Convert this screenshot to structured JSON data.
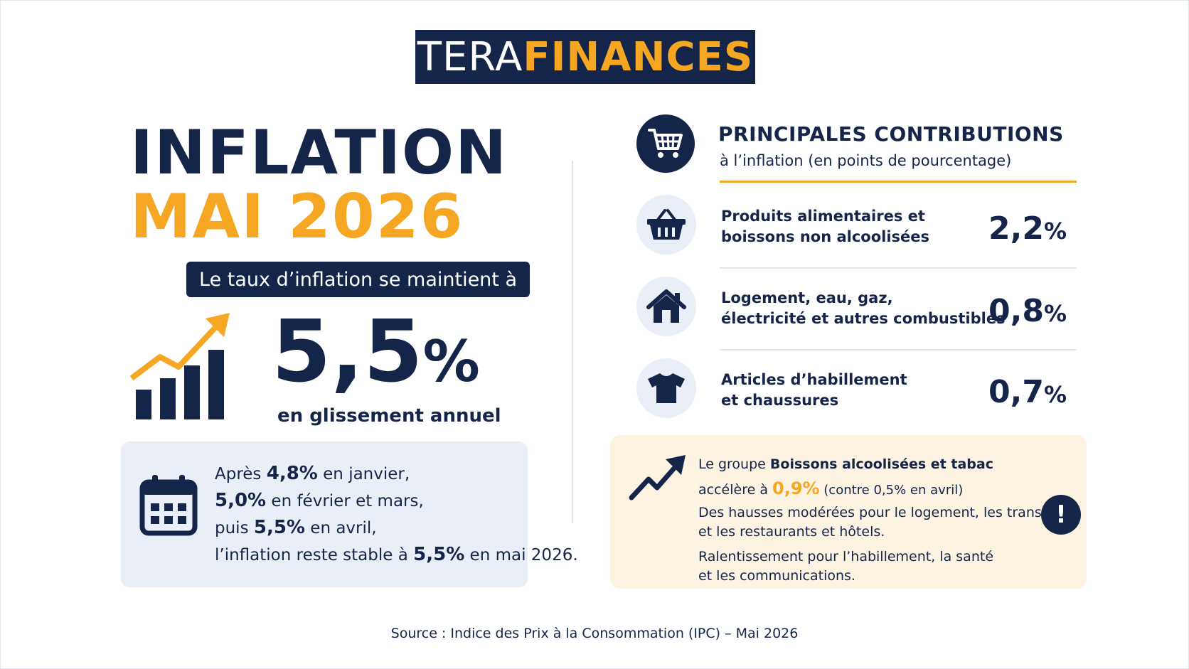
{
  "logo": {
    "part1": "TERA",
    "part2": "FINANCES"
  },
  "headline": {
    "line1": "INFLATION",
    "line2": "MAI 2026"
  },
  "intro_pill": "Le taux d’inflation se maintient à",
  "rate": {
    "value": "5,5",
    "unit": "%",
    "caption": "en glissement annuel"
  },
  "history": {
    "l1_pre": "Après ",
    "l1_val": "4,8%",
    "l1_post": " en janvier,",
    "l2_val": "5,0%",
    "l2_post": " en février et mars,",
    "l3_pre": "puis ",
    "l3_val": "5,5%",
    "l3_post": " en avril,",
    "l4_pre": "l’inflation reste stable à ",
    "l4_val": "5,5%",
    "l4_post": " en mai 2026."
  },
  "contributions": {
    "title": "PRINCIPALES CONTRIBUTIONS",
    "subtitle": "à l’inflation (en points de pourcentage)",
    "rows": [
      {
        "icon": "basket-icon",
        "label1": "Produits alimentaires et",
        "label2": "boissons non alcoolisées",
        "value": "2,2",
        "unit": "%"
      },
      {
        "icon": "house-icon",
        "label1": "Logement, eau, gaz,",
        "label2": "électricité et autres combustibles",
        "value": "0,8",
        "unit": "%"
      },
      {
        "icon": "tshirt-icon",
        "label1": "Articles d’habillement",
        "label2": "et chaussures",
        "value": "0,7",
        "unit": "%"
      }
    ]
  },
  "note": {
    "l1_pre": "Le groupe ",
    "l1_bold": "Boissons alcoolisées et tabac",
    "l2_pre": "accélère à ",
    "l2_val": "0,9%",
    "l2_post": " (contre 0,5% en avril)",
    "l3a": "Des hausses modérées pour le logement, les transports",
    "l3b": "et les restaurants et hôtels.",
    "l4a": "Ralentissement pour l’habillement, la santé",
    "l4b": "et les communications.",
    "alert": "!"
  },
  "source": "Source : Indice des Prix à la Consommation (IPC) – Mai 2026",
  "colors": {
    "navy": "#15254a",
    "gold": "#f5a623",
    "light_blue": "#eaeff7",
    "cream": "#fdf3e2"
  }
}
